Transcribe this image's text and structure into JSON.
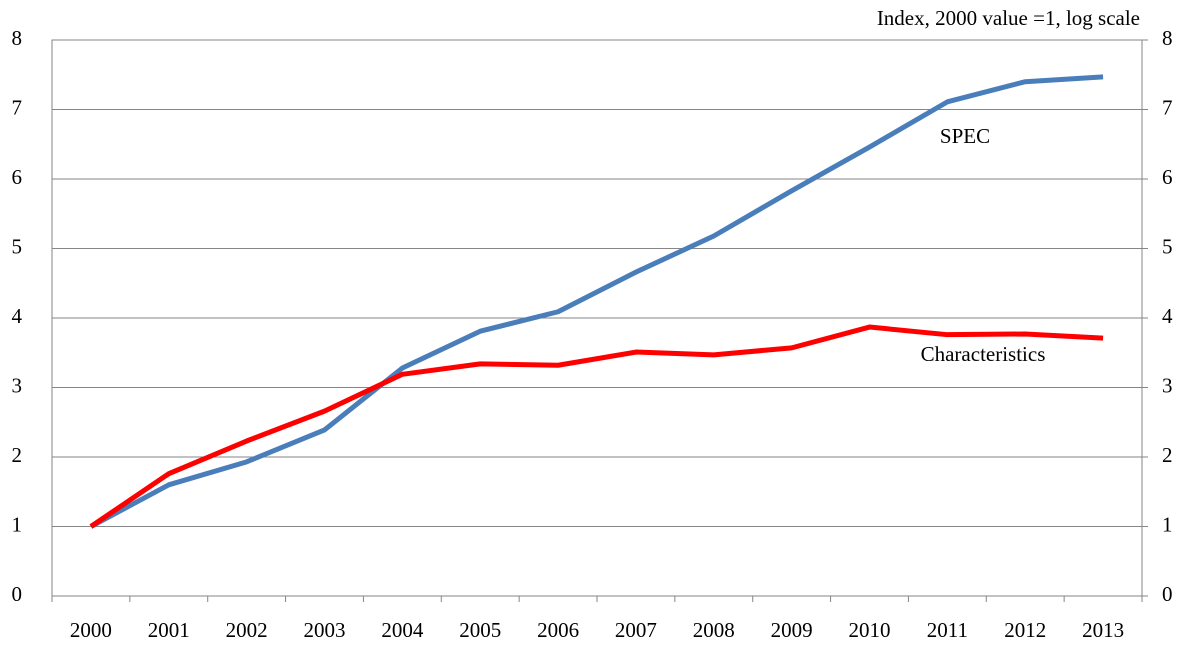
{
  "chart_data": {
    "type": "line",
    "y_axis_label": "Index, 2000 value =1, log scale",
    "categories": [
      "2000",
      "2001",
      "2002",
      "2003",
      "2004",
      "2005",
      "2006",
      "2007",
      "2008",
      "2009",
      "2010",
      "2011",
      "2012",
      "2013"
    ],
    "series": [
      {
        "name": "SPEC",
        "color": "#4a7ebb",
        "values": [
          1.0,
          1.6,
          1.93,
          2.39,
          3.28,
          3.81,
          4.09,
          4.66,
          5.18,
          5.83,
          6.46,
          7.11,
          7.4,
          7.47
        ]
      },
      {
        "name": "Characteristics",
        "color": "#ff0000",
        "values": [
          1.0,
          1.76,
          2.23,
          2.66,
          3.19,
          3.34,
          3.32,
          3.51,
          3.47,
          3.57,
          3.87,
          3.76,
          3.77,
          3.71
        ]
      }
    ],
    "ylim": [
      0,
      8
    ],
    "yticks": [
      0,
      1,
      2,
      3,
      4,
      5,
      6,
      7,
      8
    ],
    "y2lim": [
      0,
      8
    ],
    "y2ticks": [
      0,
      1,
      2,
      3,
      4,
      5,
      6,
      7,
      8
    ],
    "grid": true
  }
}
